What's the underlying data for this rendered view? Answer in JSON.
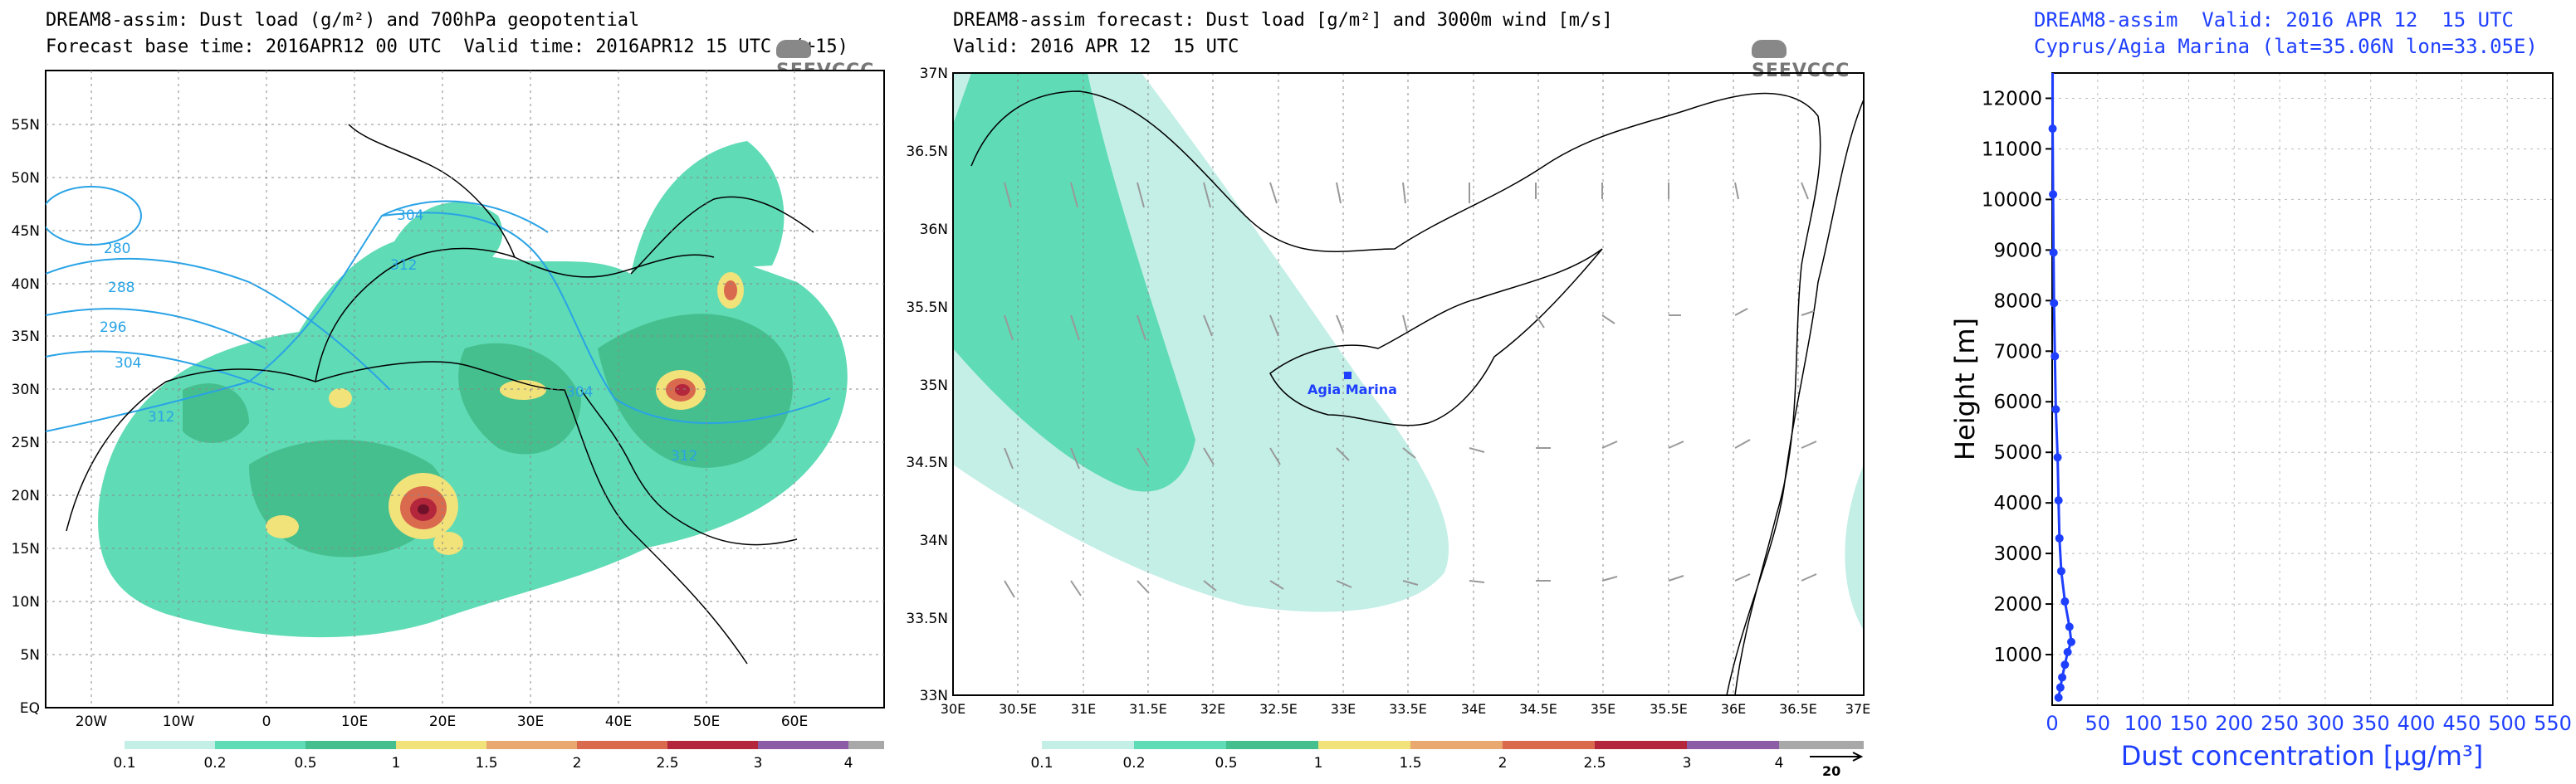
{
  "map1": {
    "title_line1": "DREAM8-assim: Dust load (g/m²) and 700hPa geopotential",
    "title_line2": "Forecast base time: 2016APR12 00 UTC  Valid time: 2016APR12 15 UTC  (+15)",
    "logo": "SEEVCCC",
    "lat_labels": [
      "55N",
      "50N",
      "45N",
      "40N",
      "35N",
      "30N",
      "25N",
      "20N",
      "15N",
      "10N",
      "5N",
      "EQ"
    ],
    "lon_labels": [
      "20W",
      "10W",
      "0",
      "10E",
      "20E",
      "30E",
      "40E",
      "50E",
      "60E"
    ],
    "contour_labels": [
      "280",
      "288",
      "296",
      "304",
      "312",
      "304",
      "312",
      "304",
      "312"
    ],
    "colorbar_labels": [
      "0.1",
      "0.2",
      "0.5",
      "1",
      "1.5",
      "2",
      "2.5",
      "3",
      "4"
    ]
  },
  "map2": {
    "title_line1": "DREAM8-assim forecast: Dust load [g/m²] and 3000m wind [m/s]",
    "title_line2": "Valid: 2016 APR 12  15 UTC",
    "logo": "SEEVCCC",
    "lat_labels": [
      "37N",
      "36.5N",
      "36N",
      "35.5N",
      "35N",
      "34.5N",
      "34N",
      "33.5N",
      "33N"
    ],
    "lon_labels": [
      "30E",
      "30.5E",
      "31E",
      "31.5E",
      "32E",
      "32.5E",
      "33E",
      "33.5E",
      "34E",
      "34.5E",
      "35E",
      "35.5E",
      "36E",
      "36.5E",
      "37E"
    ],
    "station_label": "Agia Marina",
    "colorbar_labels": [
      "0.1",
      "0.2",
      "0.5",
      "1",
      "1.5",
      "2",
      "2.5",
      "3",
      "4"
    ],
    "wind_ref": "20"
  },
  "colors": {
    "c01": "#c4efe6",
    "c02": "#5fdbb5",
    "c05": "#45bf8e",
    "c10": "#f2e27a",
    "c15": "#e8a870",
    "c20": "#d96a4e",
    "c25": "#b3263b",
    "c30": "#6e1129",
    "c40": "#8c5da6",
    "c50": "#a8a8a8",
    "contour": "#29a3e6",
    "profile": "#1f3fff"
  },
  "chart_data": {
    "type": "line",
    "title": "DREAM8-assim  Valid: 2016 APR 12  15 UTC",
    "subtitle": "Cyprus/Agia Marina (lat=35.06N lon=33.05E)",
    "xlabel": "Dust concentration [µg/m³]",
    "ylabel": "Height [m]",
    "xlim": [
      0,
      550
    ],
    "ylim": [
      0,
      12500
    ],
    "x_ticks": [
      "0",
      "50",
      "100",
      "150",
      "200",
      "250",
      "300",
      "350",
      "400",
      "450",
      "500",
      "550"
    ],
    "y_ticks": [
      "1000",
      "2000",
      "3000",
      "4000",
      "5000",
      "6000",
      "7000",
      "8000",
      "9000",
      "10000",
      "11000",
      "12000"
    ],
    "grid": true,
    "series": [
      {
        "x": [
          7,
          9,
          11,
          14,
          17,
          21,
          19,
          14,
          10,
          8,
          7,
          6,
          4,
          3,
          2,
          1.5,
          1,
          0.5
        ],
        "y": [
          150,
          350,
          550,
          800,
          1050,
          1250,
          1550,
          2050,
          2650,
          3300,
          4050,
          4900,
          5850,
          6900,
          7950,
          8950,
          10100,
          11400
        ]
      }
    ]
  }
}
